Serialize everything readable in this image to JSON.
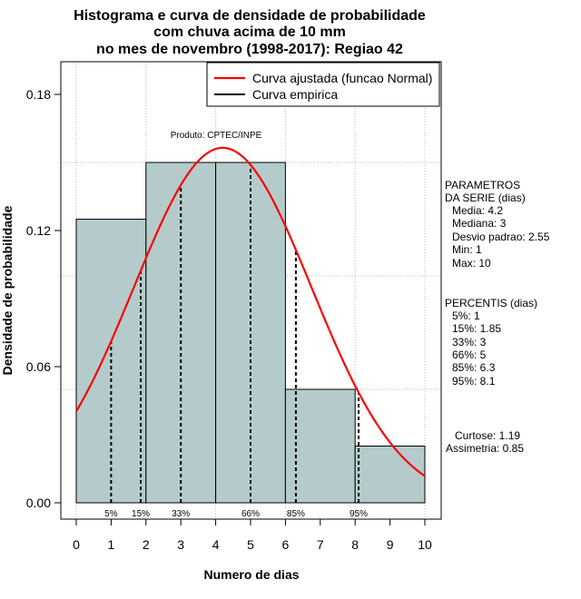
{
  "chart_data": {
    "type": "histogram",
    "title_lines": [
      "Histograma e curva de densidade de probabilidade",
      "com chuva acima de 10 mm",
      "no mes de novembro (1998-2017): Regiao 42"
    ],
    "xlabel": "Numero de dias",
    "ylabel": "Densidade de probabilidade",
    "xlim": [
      -0.5,
      10.5
    ],
    "ylim": [
      0,
      0.18
    ],
    "x_ticks": [
      0,
      1,
      2,
      3,
      4,
      5,
      6,
      7,
      8,
      9,
      10
    ],
    "y_ticks": [
      0.0,
      0.06,
      0.12,
      0.18
    ],
    "y_tick_labels": [
      "0.00",
      "0.06",
      "0.12",
      "0.18"
    ],
    "grid_x": [
      0,
      2,
      4,
      6,
      8,
      10
    ],
    "grid_y": [
      0.05,
      0.1,
      0.15
    ],
    "bars": [
      {
        "from": 0,
        "to": 2,
        "density": 0.125
      },
      {
        "from": 2,
        "to": 4,
        "density": 0.15
      },
      {
        "from": 4,
        "to": 6,
        "density": 0.15
      },
      {
        "from": 6,
        "to": 8,
        "density": 0.05
      },
      {
        "from": 8,
        "to": 10,
        "density": 0.025
      }
    ],
    "normal_curve": {
      "mean": 4.2,
      "sd": 2.55,
      "x_range": [
        0,
        10
      ]
    },
    "percentile_lines": [
      {
        "label": "5%",
        "x": 1
      },
      {
        "label": "15%",
        "x": 1.85
      },
      {
        "label": "33%",
        "x": 3
      },
      {
        "label": "66%",
        "x": 5
      },
      {
        "label": "85%",
        "x": 6.3
      },
      {
        "label": "95%",
        "x": 8.1
      }
    ],
    "legend": {
      "position": "top-right",
      "entries": [
        {
          "label": "Curva ajustada (funcao Normal)",
          "color": "#ff0000"
        },
        {
          "label": "Curva empirica",
          "color": "#000000"
        }
      ]
    },
    "annotation": "Produto: CPTEC/INPE",
    "bar_color": "#b5cbcb",
    "curve_color": "#ff0000"
  },
  "side_panel": {
    "params_title": [
      "PARAMETROS",
      "DA SERIE (dias)"
    ],
    "params": [
      "Media: 4.2",
      "Mediana: 3",
      "Desvio padrao: 2.55",
      "Min: 1",
      "Max: 10"
    ],
    "percentis_title": "PERCENTIS (dias)",
    "percentis": [
      "5%: 1",
      "15%: 1.85",
      "33%: 3",
      "66%: 5",
      "85%: 6.3",
      "95%: 8.1"
    ],
    "stats": [
      "Curtose: 1.19",
      "Assimetria: 0.85"
    ]
  }
}
